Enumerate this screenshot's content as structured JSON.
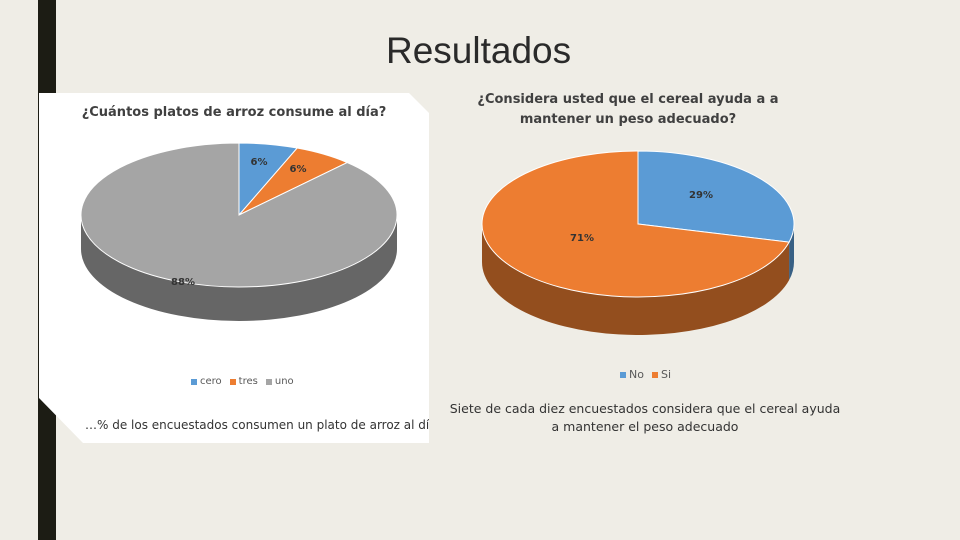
{
  "slide": {
    "title": "Resultados"
  },
  "chart_data": [
    {
      "type": "pie",
      "title": "¿Cuántos platos de arroz consume al día?",
      "categories": [
        "cero",
        "tres",
        "uno"
      ],
      "values": [
        6,
        6,
        88
      ],
      "data_labels": [
        "6%",
        "6%",
        "88%"
      ],
      "colors": [
        "#5b9bd5",
        "#ed7d31",
        "#a5a5a5"
      ],
      "legend": "bottom",
      "caption": "…% de los encuestados consumen un plato de arroz al día."
    },
    {
      "type": "pie",
      "title": "¿Considera usted que el cereal ayuda a a mantener un peso adecuado?",
      "title_lines": [
        "¿Considera usted que el cereal ayuda a a",
        "mantener un peso adecuado?"
      ],
      "categories": [
        "No",
        "Si"
      ],
      "values": [
        29,
        71
      ],
      "data_labels": [
        "29%",
        "71%"
      ],
      "colors": [
        "#5b9bd5",
        "#ed7d31"
      ],
      "legend": "bottom",
      "caption_lines": [
        "Siete de cada diez encuestados considera que el cereal ayuda",
        "a mantener el peso adecuado"
      ]
    }
  ]
}
